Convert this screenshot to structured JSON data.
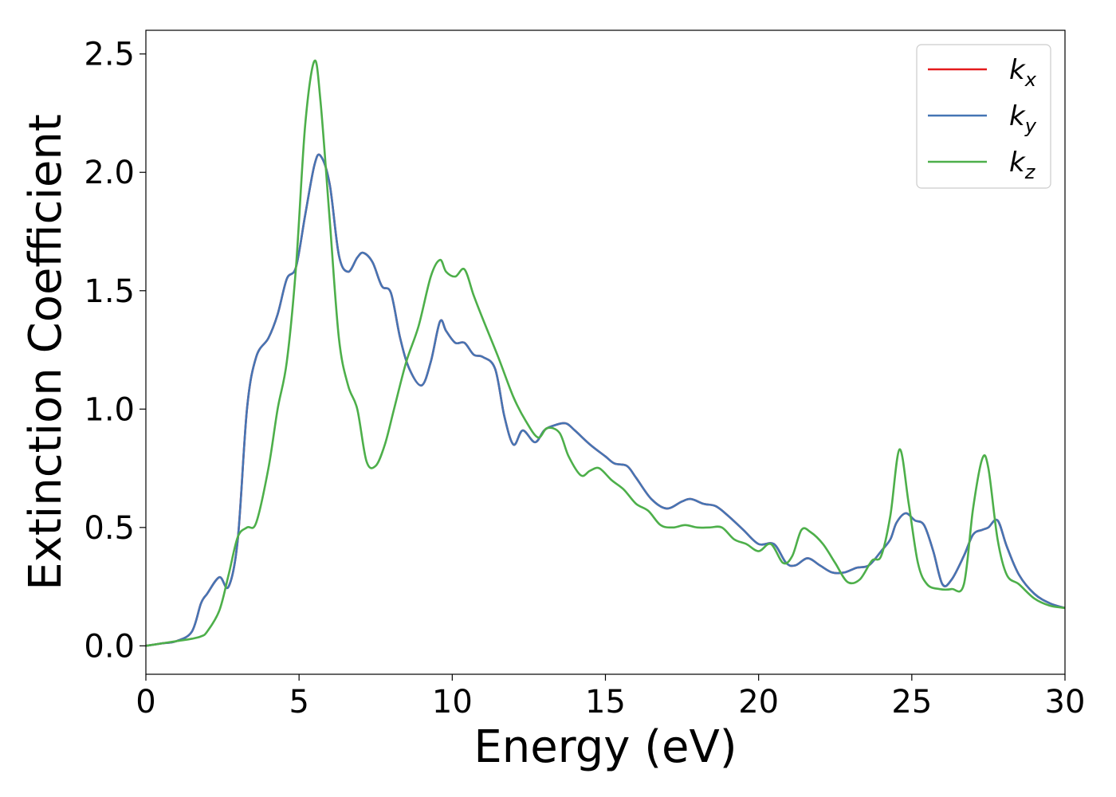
{
  "chart_data": {
    "type": "line",
    "xlabel": "Energy (eV)",
    "ylabel": "Extinction Coefficient",
    "xlim": [
      0,
      30
    ],
    "ylim": [
      -0.12,
      2.6
    ],
    "xticks": [
      "0",
      "5",
      "10",
      "15",
      "20",
      "25",
      "30"
    ],
    "yticks": [
      "0.0",
      "0.5",
      "1.0",
      "1.5",
      "2.0",
      "2.5"
    ],
    "grid": false,
    "legend_position": "top-right",
    "series": [
      {
        "name": "k_x",
        "legend_base": "k",
        "legend_sub": "x",
        "color": "#e41a1c",
        "x": [
          0,
          0.5,
          1.0,
          1.5,
          1.8,
          2.0,
          2.4,
          2.7,
          3.0,
          3.3,
          3.6,
          4.0,
          4.3,
          4.6,
          4.9,
          5.2,
          5.5,
          5.7,
          6.0,
          6.3,
          6.6,
          6.9,
          7.1,
          7.4,
          7.7,
          8.0,
          8.3,
          8.6,
          9.0,
          9.3,
          9.6,
          9.8,
          10.1,
          10.4,
          10.7,
          11.0,
          11.4,
          11.7,
          12.0,
          12.3,
          12.7,
          13.0,
          13.3,
          13.7,
          14.0,
          14.5,
          15.0,
          15.3,
          15.7,
          16.0,
          16.5,
          17.0,
          17.5,
          17.8,
          18.2,
          18.6,
          19.0,
          19.5,
          20.0,
          20.5,
          20.9,
          21.2,
          21.6,
          22.0,
          22.4,
          22.8,
          23.2,
          23.6,
          24.0,
          24.3,
          24.5,
          24.8,
          25.1,
          25.4,
          25.7,
          26.0,
          26.3,
          26.7,
          27.0,
          27.3,
          27.5,
          27.8,
          28.1,
          28.5,
          29.0,
          29.5,
          30.0
        ],
        "y": [
          0.0,
          0.01,
          0.02,
          0.06,
          0.18,
          0.22,
          0.29,
          0.25,
          0.45,
          1.0,
          1.22,
          1.3,
          1.4,
          1.55,
          1.6,
          1.82,
          2.03,
          2.07,
          1.95,
          1.65,
          1.58,
          1.64,
          1.66,
          1.62,
          1.52,
          1.49,
          1.3,
          1.17,
          1.1,
          1.2,
          1.37,
          1.33,
          1.28,
          1.28,
          1.23,
          1.22,
          1.17,
          0.97,
          0.85,
          0.91,
          0.86,
          0.91,
          0.93,
          0.94,
          0.91,
          0.85,
          0.8,
          0.77,
          0.76,
          0.71,
          0.62,
          0.58,
          0.61,
          0.62,
          0.6,
          0.59,
          0.55,
          0.49,
          0.43,
          0.43,
          0.35,
          0.34,
          0.37,
          0.34,
          0.31,
          0.31,
          0.33,
          0.34,
          0.4,
          0.45,
          0.52,
          0.56,
          0.53,
          0.51,
          0.4,
          0.26,
          0.28,
          0.38,
          0.47,
          0.49,
          0.5,
          0.53,
          0.42,
          0.3,
          0.22,
          0.18,
          0.16
        ]
      },
      {
        "name": "k_y",
        "legend_base": "k",
        "legend_sub": "y",
        "color": "#4575b4",
        "x": [
          0,
          0.5,
          1.0,
          1.5,
          1.8,
          2.0,
          2.4,
          2.7,
          3.0,
          3.3,
          3.6,
          4.0,
          4.3,
          4.6,
          4.9,
          5.2,
          5.5,
          5.7,
          6.0,
          6.3,
          6.6,
          6.9,
          7.1,
          7.4,
          7.7,
          8.0,
          8.3,
          8.6,
          9.0,
          9.3,
          9.6,
          9.8,
          10.1,
          10.4,
          10.7,
          11.0,
          11.4,
          11.7,
          12.0,
          12.3,
          12.7,
          13.0,
          13.3,
          13.7,
          14.0,
          14.5,
          15.0,
          15.3,
          15.7,
          16.0,
          16.5,
          17.0,
          17.5,
          17.8,
          18.2,
          18.6,
          19.0,
          19.5,
          20.0,
          20.5,
          20.9,
          21.2,
          21.6,
          22.0,
          22.4,
          22.8,
          23.2,
          23.6,
          24.0,
          24.3,
          24.5,
          24.8,
          25.1,
          25.4,
          25.7,
          26.0,
          26.3,
          26.7,
          27.0,
          27.3,
          27.5,
          27.8,
          28.1,
          28.5,
          29.0,
          29.5,
          30.0
        ],
        "y": [
          0.0,
          0.01,
          0.02,
          0.06,
          0.18,
          0.22,
          0.29,
          0.25,
          0.45,
          1.0,
          1.22,
          1.3,
          1.4,
          1.55,
          1.6,
          1.82,
          2.03,
          2.07,
          1.95,
          1.65,
          1.58,
          1.64,
          1.66,
          1.62,
          1.52,
          1.49,
          1.3,
          1.17,
          1.1,
          1.2,
          1.37,
          1.33,
          1.28,
          1.28,
          1.23,
          1.22,
          1.17,
          0.97,
          0.85,
          0.91,
          0.86,
          0.91,
          0.93,
          0.94,
          0.91,
          0.85,
          0.8,
          0.77,
          0.76,
          0.71,
          0.62,
          0.58,
          0.61,
          0.62,
          0.6,
          0.59,
          0.55,
          0.49,
          0.43,
          0.43,
          0.35,
          0.34,
          0.37,
          0.34,
          0.31,
          0.31,
          0.33,
          0.34,
          0.4,
          0.45,
          0.52,
          0.56,
          0.53,
          0.51,
          0.4,
          0.26,
          0.28,
          0.38,
          0.47,
          0.49,
          0.5,
          0.53,
          0.42,
          0.3,
          0.22,
          0.18,
          0.16
        ]
      },
      {
        "name": "k_z",
        "legend_base": "k",
        "legend_sub": "z",
        "color": "#4daf4a",
        "x": [
          0,
          0.5,
          1.0,
          1.5,
          1.8,
          2.0,
          2.4,
          2.7,
          3.0,
          3.3,
          3.6,
          4.0,
          4.3,
          4.6,
          4.9,
          5.2,
          5.5,
          5.7,
          6.0,
          6.3,
          6.6,
          6.9,
          7.2,
          7.5,
          7.8,
          8.1,
          8.5,
          8.9,
          9.3,
          9.6,
          9.8,
          10.1,
          10.4,
          10.7,
          11.0,
          11.5,
          12.0,
          12.4,
          12.8,
          13.1,
          13.5,
          13.8,
          14.2,
          14.5,
          14.8,
          15.2,
          15.6,
          16.0,
          16.4,
          16.8,
          17.2,
          17.6,
          18.0,
          18.4,
          18.8,
          19.2,
          19.6,
          20.0,
          20.4,
          20.8,
          21.1,
          21.4,
          21.7,
          22.1,
          22.5,
          22.9,
          23.3,
          23.7,
          24.0,
          24.3,
          24.6,
          24.9,
          25.2,
          25.5,
          25.9,
          26.3,
          26.7,
          27.0,
          27.3,
          27.5,
          27.8,
          28.1,
          28.5,
          29.0,
          29.5,
          30.0
        ],
        "y": [
          0.0,
          0.01,
          0.02,
          0.03,
          0.04,
          0.06,
          0.15,
          0.3,
          0.46,
          0.5,
          0.52,
          0.75,
          1.0,
          1.2,
          1.6,
          2.2,
          2.47,
          2.3,
          1.8,
          1.3,
          1.1,
          1.0,
          0.78,
          0.76,
          0.85,
          1.0,
          1.2,
          1.35,
          1.56,
          1.63,
          1.58,
          1.56,
          1.59,
          1.48,
          1.38,
          1.22,
          1.05,
          0.95,
          0.88,
          0.92,
          0.9,
          0.8,
          0.72,
          0.74,
          0.75,
          0.7,
          0.66,
          0.6,
          0.57,
          0.51,
          0.5,
          0.51,
          0.5,
          0.5,
          0.5,
          0.45,
          0.43,
          0.4,
          0.43,
          0.35,
          0.38,
          0.49,
          0.48,
          0.43,
          0.35,
          0.27,
          0.28,
          0.36,
          0.38,
          0.55,
          0.83,
          0.6,
          0.35,
          0.26,
          0.24,
          0.24,
          0.26,
          0.58,
          0.79,
          0.75,
          0.45,
          0.3,
          0.26,
          0.2,
          0.17,
          0.16
        ]
      }
    ]
  }
}
